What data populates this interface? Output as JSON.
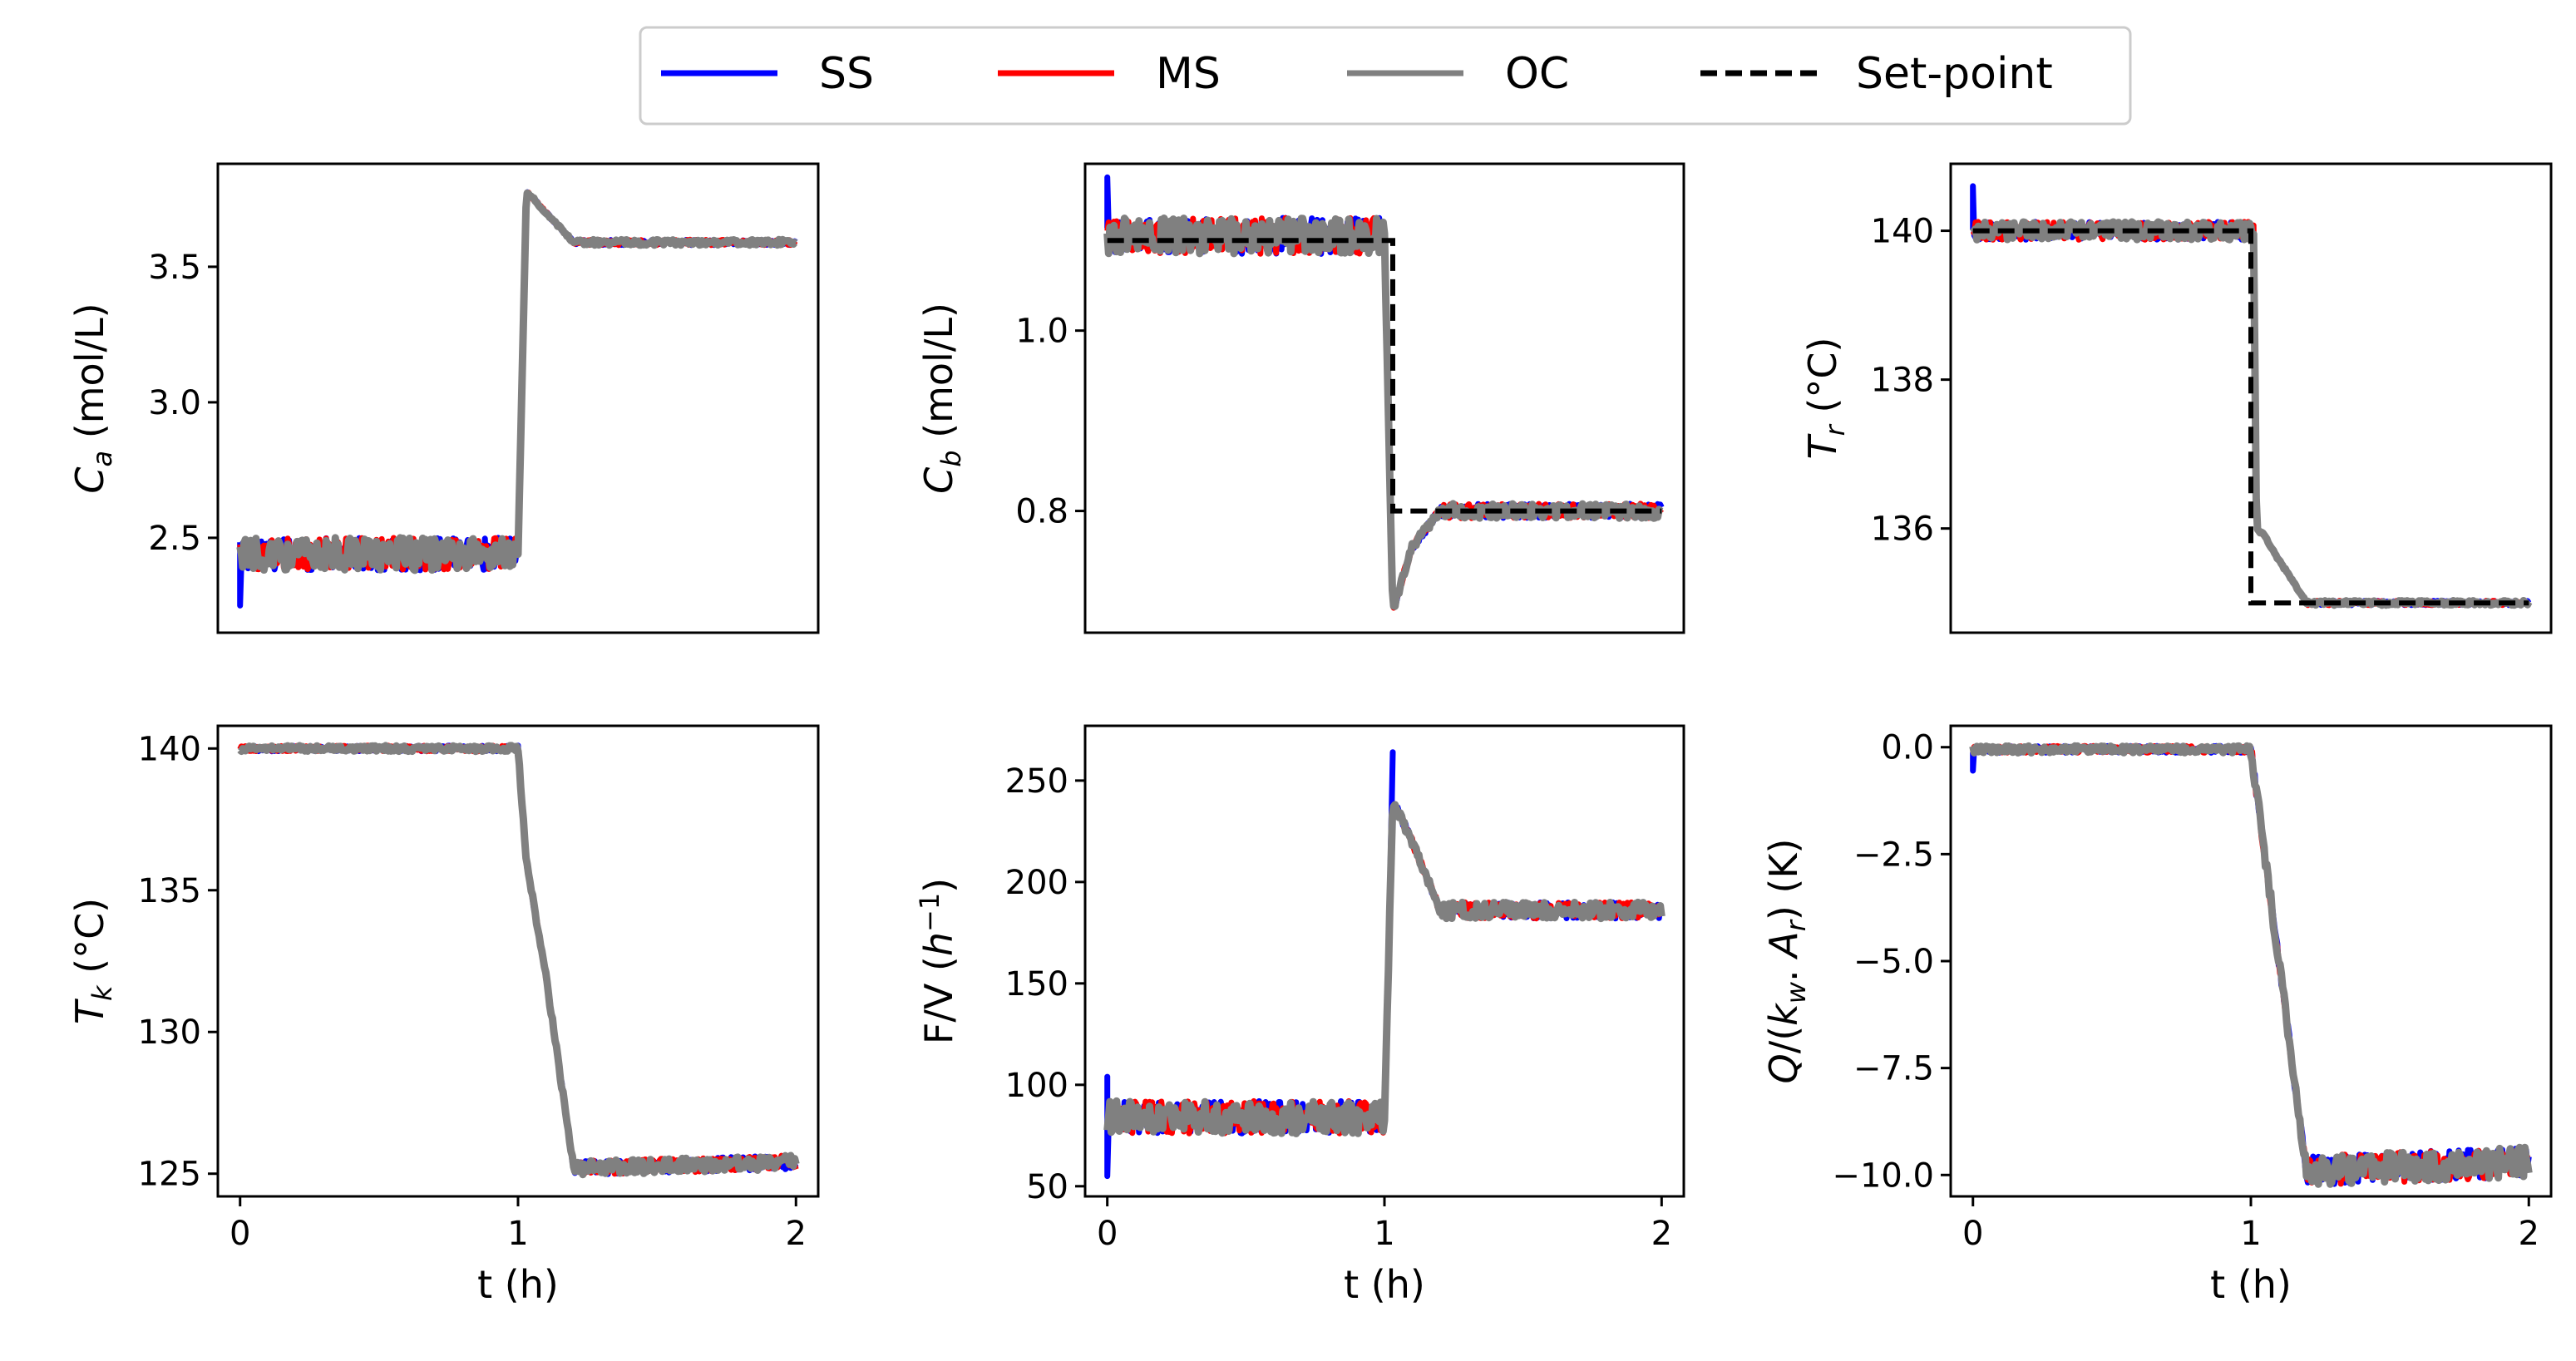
{
  "legend": {
    "position": "top-center",
    "entries": [
      {
        "label": "SS",
        "color": "#0000ff",
        "style": "solid"
      },
      {
        "label": "MS",
        "color": "#ff0000",
        "style": "solid"
      },
      {
        "label": "OC",
        "color": "#808080",
        "style": "solid"
      },
      {
        "label": "Set-point",
        "color": "#000000",
        "style": "dashed"
      }
    ]
  },
  "chart_data": [
    {
      "type": "line",
      "id": "ca",
      "ylabel_main": "C",
      "ylabel_sub": "a",
      "ylabel_rest": " (mol/L)",
      "xlabel": "",
      "xlim": [
        -0.08,
        2.08
      ],
      "ylim": [
        2.15,
        3.88
      ],
      "xticks": [],
      "yticks": [
        2.5,
        3.0,
        3.5
      ],
      "ytick_labels": [
        "2.5",
        "3.0",
        "3.5"
      ],
      "profile": [
        [
          0,
          2.44
        ],
        [
          1.0,
          2.44
        ],
        [
          1.03,
          3.78
        ],
        [
          1.1,
          3.7
        ],
        [
          1.2,
          3.59
        ],
        [
          2.0,
          3.59
        ]
      ],
      "noise_before": 0.06,
      "noise_after": 0.01,
      "spikes": [
        {
          "t": 0.0,
          "value": 2.25,
          "series": "SS"
        }
      ],
      "setpoint": null
    },
    {
      "type": "line",
      "id": "cb",
      "ylabel_main": "C",
      "ylabel_sub": "b",
      "ylabel_rest": " (mol/L)",
      "xlabel": "",
      "xlim": [
        -0.08,
        2.08
      ],
      "ylim": [
        0.665,
        1.185
      ],
      "xticks": [],
      "yticks": [
        0.8,
        1.0
      ],
      "ytick_labels": [
        "0.8",
        "1.0"
      ],
      "profile": [
        [
          0,
          1.105
        ],
        [
          1.0,
          1.105
        ],
        [
          1.03,
          0.69
        ],
        [
          1.1,
          0.76
        ],
        [
          1.2,
          0.8
        ],
        [
          2.0,
          0.8
        ]
      ],
      "noise_before": 0.02,
      "noise_after": 0.008,
      "spikes": [
        {
          "t": 0.0,
          "value": 1.17,
          "series": "SS"
        }
      ],
      "setpoint": [
        [
          0,
          1.1
        ],
        [
          1.03,
          1.1
        ],
        [
          1.03,
          0.8
        ],
        [
          2.0,
          0.8
        ]
      ]
    },
    {
      "type": "line",
      "id": "tr",
      "ylabel_main": "T",
      "ylabel_sub": "r",
      "ylabel_rest": " (°C)",
      "xlabel": "",
      "xlim": [
        -0.08,
        2.08
      ],
      "ylim": [
        134.6,
        140.9
      ],
      "xticks": [],
      "yticks": [
        136,
        138,
        140
      ],
      "ytick_labels": [
        "136",
        "138",
        "140"
      ],
      "profile": [
        [
          0,
          140.0
        ],
        [
          1.01,
          140.0
        ],
        [
          1.02,
          136.0
        ],
        [
          1.05,
          135.9
        ],
        [
          1.08,
          135.7
        ],
        [
          1.2,
          135.0
        ],
        [
          2.0,
          135.0
        ]
      ],
      "noise_before": 0.12,
      "noise_after": 0.03,
      "spikes": [
        {
          "t": 0.0,
          "value": 140.6,
          "series": "SS"
        }
      ],
      "setpoint": [
        [
          0,
          140.0
        ],
        [
          1.0,
          140.0
        ],
        [
          1.0,
          135.0
        ],
        [
          2.0,
          135.0
        ]
      ]
    },
    {
      "type": "line",
      "id": "tk",
      "ylabel_main": "T",
      "ylabel_sub": "k",
      "ylabel_rest": " (°C)",
      "xlabel": "t (h)",
      "xlim": [
        -0.08,
        2.08
      ],
      "ylim": [
        124.2,
        140.8
      ],
      "xticks": [
        0,
        1,
        2
      ],
      "xtick_labels": [
        "0",
        "1",
        "2"
      ],
      "yticks": [
        125,
        130,
        135,
        140
      ],
      "ytick_labels": [
        "125",
        "130",
        "135",
        "140"
      ],
      "profile": [
        [
          0,
          140.0
        ],
        [
          1.0,
          140.0
        ],
        [
          1.03,
          136.0
        ],
        [
          1.1,
          132.0
        ],
        [
          1.2,
          125.2
        ],
        [
          2.0,
          125.4
        ]
      ],
      "noise_before": 0.1,
      "noise_after": 0.25,
      "spikes": [],
      "setpoint": null
    },
    {
      "type": "line",
      "id": "fv",
      "ylabel_main": "F/V (",
      "ylabel_italic": "h",
      "ylabel_sup": "−1",
      "ylabel_rest": ")",
      "xlabel": "t (h)",
      "xlim": [
        -0.08,
        2.08
      ],
      "ylim": [
        45,
        277
      ],
      "xticks": [
        0,
        1,
        2
      ],
      "xtick_labels": [
        "0",
        "1",
        "2"
      ],
      "yticks": [
        50,
        100,
        150,
        200,
        250
      ],
      "ytick_labels": [
        "50",
        "100",
        "150",
        "200",
        "250"
      ],
      "profile": [
        [
          0,
          84
        ],
        [
          1.0,
          84
        ],
        [
          1.03,
          240
        ],
        [
          1.1,
          220
        ],
        [
          1.2,
          186
        ],
        [
          2.0,
          186
        ]
      ],
      "noise_before": 8,
      "noise_after": 4,
      "spikes": [
        {
          "t": 0.0,
          "value": 55,
          "series": "SS"
        },
        {
          "t": 0.0,
          "value": 104,
          "series": "SS"
        },
        {
          "t": 1.03,
          "value": 264,
          "series": "SS"
        }
      ],
      "setpoint": null
    },
    {
      "type": "line",
      "id": "q",
      "ylabel_text": "Q/(k_w. A_r) (K)",
      "ylabel_html": true,
      "xlabel": "t (h)",
      "xlim": [
        -0.08,
        2.08
      ],
      "ylim": [
        -10.5,
        0.5
      ],
      "xticks": [
        0,
        1,
        2
      ],
      "xtick_labels": [
        "0",
        "1",
        "2"
      ],
      "yticks": [
        -10.0,
        -7.5,
        -5.0,
        -2.5,
        0.0
      ],
      "ytick_labels": [
        "−10.0",
        "−7.5",
        "−5.0",
        "−2.5",
        "0.0"
      ],
      "profile": [
        [
          0,
          -0.05
        ],
        [
          1.0,
          -0.05
        ],
        [
          1.2,
          -9.9
        ],
        [
          2.0,
          -9.7
        ]
      ],
      "noise_before": 0.08,
      "noise_after": 0.35,
      "spikes": [
        {
          "t": 0.0,
          "value": -0.55,
          "series": "SS"
        }
      ],
      "setpoint": null
    }
  ]
}
